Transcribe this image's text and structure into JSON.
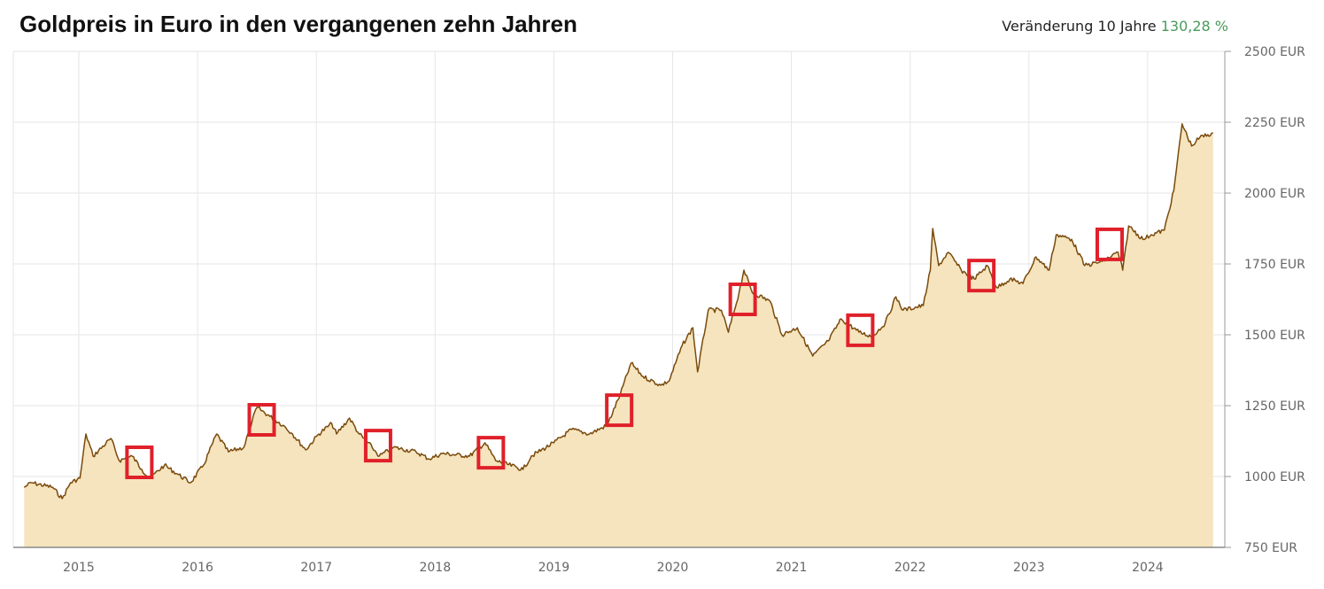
{
  "chart_data": {
    "type": "area",
    "title": "Goldpreis in Euro in den vergangenen zehn Jahren",
    "change_label": "Veränderung 10 Jahre",
    "change_value": "130,28 %",
    "colors": {
      "line": "#7a4a0c",
      "fill": "#f5e4bd",
      "annotation": "#e0202a",
      "change_value": "#4a9a5a"
    },
    "ylim": [
      750,
      2500
    ],
    "y_ticks": [
      750,
      1000,
      1250,
      1500,
      1750,
      2000,
      2250,
      2500
    ],
    "y_tick_labels": [
      "750 EUR",
      "1000 EUR",
      "1250 EUR",
      "1500 EUR",
      "1750 EUR",
      "2000 EUR",
      "2250 EUR",
      "2500 EUR"
    ],
    "x_ticks": [
      2015,
      2016,
      2017,
      2018,
      2019,
      2020,
      2021,
      2022,
      2023,
      2024
    ],
    "x_tick_labels": [
      "2015",
      "2016",
      "2017",
      "2018",
      "2019",
      "2020",
      "2021",
      "2022",
      "2023",
      "2024"
    ],
    "grid": true,
    "y_axis_position": "right",
    "x": [
      2014.54,
      2014.6,
      2014.78,
      2014.86,
      2014.93,
      2015.01,
      2015.06,
      2015.12,
      2015.27,
      2015.34,
      2015.45,
      2015.53,
      2015.6,
      2015.72,
      2015.83,
      2015.94,
      2016.05,
      2016.16,
      2016.26,
      2016.39,
      2016.46,
      2016.5,
      2016.61,
      2016.72,
      2016.8,
      2016.91,
      2017.02,
      2017.13,
      2017.17,
      2017.28,
      2017.36,
      2017.47,
      2017.53,
      2017.65,
      2017.84,
      2017.95,
      2018.06,
      2018.29,
      2018.42,
      2018.51,
      2018.74,
      2018.81,
      2019.0,
      2019.15,
      2019.3,
      2019.45,
      2019.56,
      2019.65,
      2019.75,
      2019.9,
      2019.97,
      2020.08,
      2020.17,
      2020.21,
      2020.3,
      2020.41,
      2020.47,
      2020.56,
      2020.6,
      2020.67,
      2020.82,
      2020.92,
      2021.05,
      2021.18,
      2021.31,
      2021.42,
      2021.57,
      2021.68,
      2021.79,
      2021.88,
      2021.94,
      2022.11,
      2022.17,
      2022.19,
      2022.24,
      2022.32,
      2022.43,
      2022.54,
      2022.65,
      2022.73,
      2022.84,
      2022.95,
      2023.06,
      2023.17,
      2023.23,
      2023.36,
      2023.47,
      2023.62,
      2023.75,
      2023.79,
      2023.84,
      2023.96,
      2024.03,
      2024.14,
      2024.22,
      2024.29,
      2024.37,
      2024.44,
      2024.55
    ],
    "values": [
      962,
      978,
      962,
      922,
      978,
      994,
      1150,
      1072,
      1134,
      1056,
      1072,
      1025,
      994,
      1040,
      1009,
      978,
      1040,
      1150,
      1087,
      1103,
      1197,
      1244,
      1212,
      1181,
      1150,
      1094,
      1150,
      1187,
      1150,
      1206,
      1150,
      1103,
      1072,
      1103,
      1087,
      1062,
      1081,
      1072,
      1119,
      1056,
      1025,
      1072,
      1119,
      1166,
      1150,
      1181,
      1291,
      1400,
      1353,
      1322,
      1337,
      1462,
      1525,
      1369,
      1587,
      1587,
      1509,
      1650,
      1728,
      1650,
      1619,
      1500,
      1525,
      1425,
      1478,
      1556,
      1509,
      1494,
      1541,
      1634,
      1587,
      1603,
      1728,
      1875,
      1744,
      1791,
      1728,
      1697,
      1744,
      1666,
      1697,
      1681,
      1775,
      1728,
      1853,
      1837,
      1744,
      1759,
      1791,
      1728,
      1884,
      1837,
      1853,
      1869,
      2009,
      2244,
      2166,
      2197,
      2212
    ],
    "annotations": [
      {
        "x": 2015.51,
        "y": 1050
      },
      {
        "x": 2016.54,
        "y": 1200
      },
      {
        "x": 2017.52,
        "y": 1109
      },
      {
        "x": 2018.47,
        "y": 1084
      },
      {
        "x": 2019.55,
        "y": 1234
      },
      {
        "x": 2020.59,
        "y": 1625
      },
      {
        "x": 2021.58,
        "y": 1516
      },
      {
        "x": 2022.6,
        "y": 1709
      },
      {
        "x": 2023.68,
        "y": 1819
      }
    ]
  }
}
